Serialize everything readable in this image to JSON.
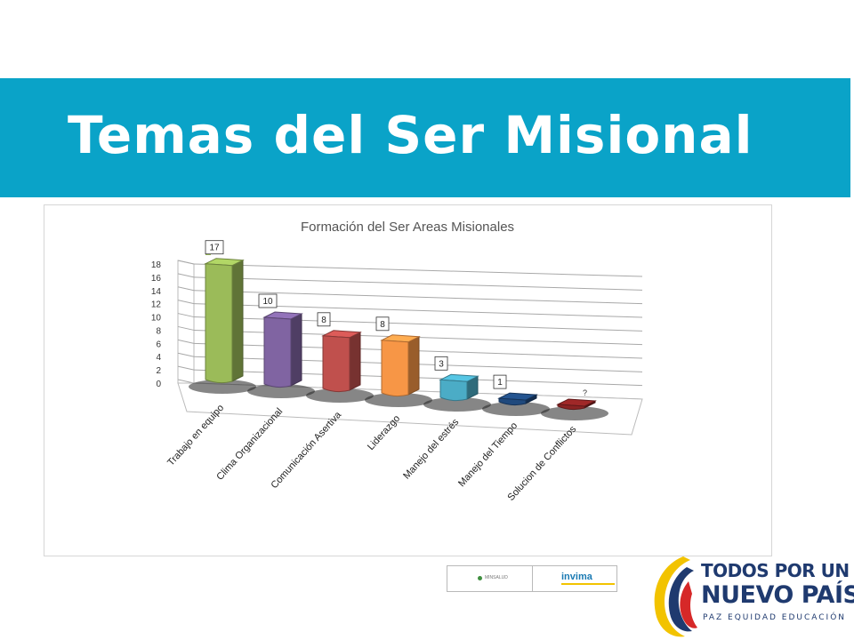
{
  "page": {
    "title": "Temas del Ser Misional"
  },
  "chart_data": {
    "type": "bar",
    "title": "Formación del  Ser  Areas Misionales",
    "categories": [
      "Trabajo en equipo",
      "Clima Organizacional",
      "Comunicación Asertiva",
      "Liderazgo",
      "Manejo del estrés",
      "Manejo del Tiempo",
      "Solucion de Conflictos"
    ],
    "series": [
      {
        "values": [
          17,
          10,
          8,
          8,
          3,
          1,
          0
        ]
      }
    ],
    "data_labels": [
      "17",
      "10",
      "8",
      "8",
      "3",
      "1",
      "?"
    ],
    "ylim": [
      0,
      18
    ],
    "yticks": [
      "0",
      "2",
      "4",
      "6",
      "8",
      "10",
      "12",
      "14",
      "16",
      "18"
    ],
    "grid": true,
    "legend": "top-left",
    "colors": [
      "#9bbb59",
      "#8064a2",
      "#c0504d",
      "#f79646",
      "#4bacc6",
      "#1f497d",
      "#8b2323"
    ]
  },
  "footer": {
    "left_logo_text": "MINSALUD",
    "right_logo_text": "invima",
    "brand_line1": "TODOS POR UN",
    "brand_line2": "NUEVO PAÍS",
    "brand_line3": "PAZ  EQUIDAD  EDUCACIÓN"
  }
}
